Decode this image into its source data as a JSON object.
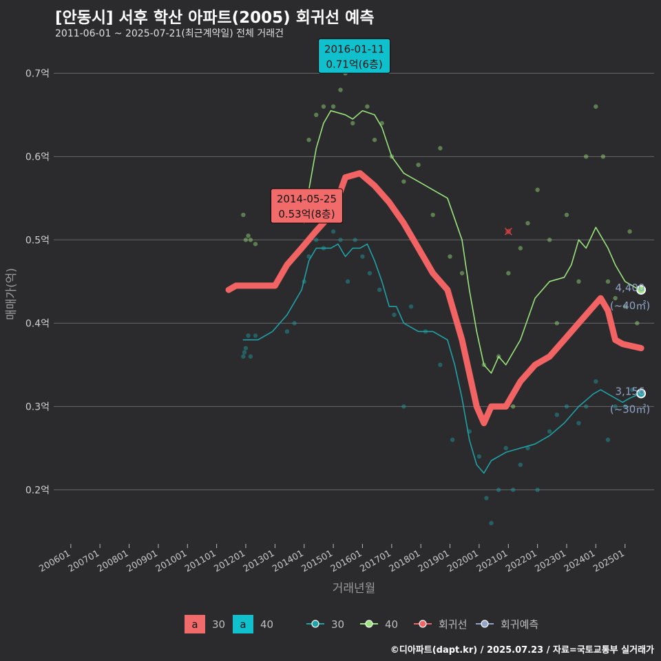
{
  "title": "[안동시] 서후 학산 아파트(2005) 회귀선 예측",
  "subtitle": "2011-06-01 ~ 2025-07-21(최근계약일) 전체 거래건",
  "caption": "©디아파트(dapt.kr) / 2025.07.23 / 자료=국토교통부 실거래가",
  "chart_data": {
    "type": "line",
    "xlabel": "거래년월",
    "ylabel": "매매가(억)",
    "x_ticks": [
      "200601",
      "200701",
      "200801",
      "200901",
      "201001",
      "201101",
      "201201",
      "201301",
      "201401",
      "201501",
      "201601",
      "201701",
      "201801",
      "201901",
      "202001",
      "202101",
      "202201",
      "202301",
      "202401",
      "202501"
    ],
    "y_ticks": [
      {
        "value": 0.2,
        "label": "0.2억"
      },
      {
        "value": 0.3,
        "label": "0.3억"
      },
      {
        "value": 0.4,
        "label": "0.4억"
      },
      {
        "value": 0.5,
        "label": "0.5억"
      },
      {
        "value": 0.6,
        "label": "0.6억"
      },
      {
        "value": 0.7,
        "label": "0.7억"
      }
    ],
    "xlim": [
      "2005-06-01",
      "2025-12-31"
    ],
    "ylim": [
      0.135,
      0.735
    ],
    "colors": {
      "s30": "#1fa3a8",
      "s40": "#9be57d",
      "regression": "#f26464",
      "forecast": "#8fa4c8",
      "callout30": "#f26b6b",
      "callout40": "#10c0cc"
    },
    "series": [
      {
        "name": "30",
        "values": [
          [
            "2011-12-01",
            0.38
          ],
          [
            "2012-06-01",
            0.38
          ],
          [
            "2012-12-01",
            0.39
          ],
          [
            "2013-06-01",
            0.41
          ],
          [
            "2013-12-01",
            0.44
          ],
          [
            "2014-03-01",
            0.475
          ],
          [
            "2014-06-01",
            0.49
          ],
          [
            "2014-12-01",
            0.49
          ],
          [
            "2015-03-01",
            0.495
          ],
          [
            "2015-06-01",
            0.48
          ],
          [
            "2015-09-01",
            0.49
          ],
          [
            "2015-12-01",
            0.49
          ],
          [
            "2016-03-01",
            0.495
          ],
          [
            "2016-06-01",
            0.475
          ],
          [
            "2016-09-01",
            0.45
          ],
          [
            "2016-12-01",
            0.42
          ],
          [
            "2017-03-01",
            0.42
          ],
          [
            "2017-06-01",
            0.4
          ],
          [
            "2017-12-01",
            0.39
          ],
          [
            "2018-06-01",
            0.39
          ],
          [
            "2018-12-01",
            0.38
          ],
          [
            "2019-03-01",
            0.35
          ],
          [
            "2019-06-01",
            0.31
          ],
          [
            "2019-09-01",
            0.26
          ],
          [
            "2019-12-01",
            0.23
          ],
          [
            "2020-03-01",
            0.22
          ],
          [
            "2020-06-01",
            0.235
          ],
          [
            "2020-12-01",
            0.245
          ],
          [
            "2021-06-01",
            0.25
          ],
          [
            "2021-12-01",
            0.255
          ],
          [
            "2022-06-01",
            0.265
          ],
          [
            "2022-12-01",
            0.28
          ],
          [
            "2023-06-01",
            0.3
          ],
          [
            "2023-12-01",
            0.315
          ],
          [
            "2024-03-01",
            0.32
          ],
          [
            "2024-06-01",
            0.315
          ],
          [
            "2024-12-01",
            0.305
          ],
          [
            "2025-03-01",
            0.31
          ],
          [
            "2025-07-01",
            0.315
          ]
        ]
      },
      {
        "name": "40",
        "values": [
          [
            "2014-01-01",
            0.52
          ],
          [
            "2014-03-01",
            0.56
          ],
          [
            "2014-06-01",
            0.61
          ],
          [
            "2014-09-01",
            0.64
          ],
          [
            "2014-12-01",
            0.655
          ],
          [
            "2015-06-01",
            0.65
          ],
          [
            "2015-09-01",
            0.645
          ],
          [
            "2016-01-01",
            0.655
          ],
          [
            "2016-06-01",
            0.65
          ],
          [
            "2016-09-01",
            0.635
          ],
          [
            "2017-01-01",
            0.6
          ],
          [
            "2017-06-01",
            0.58
          ],
          [
            "2017-12-01",
            0.57
          ],
          [
            "2018-06-01",
            0.56
          ],
          [
            "2018-12-01",
            0.55
          ],
          [
            "2019-06-01",
            0.5
          ],
          [
            "2019-09-01",
            0.44
          ],
          [
            "2019-12-01",
            0.39
          ],
          [
            "2020-03-01",
            0.35
          ],
          [
            "2020-06-01",
            0.34
          ],
          [
            "2020-09-01",
            0.36
          ],
          [
            "2020-12-01",
            0.35
          ],
          [
            "2021-06-01",
            0.38
          ],
          [
            "2021-12-01",
            0.43
          ],
          [
            "2022-06-01",
            0.45
          ],
          [
            "2022-12-01",
            0.455
          ],
          [
            "2023-03-01",
            0.47
          ],
          [
            "2023-06-01",
            0.5
          ],
          [
            "2023-09-01",
            0.49
          ],
          [
            "2024-01-01",
            0.515
          ],
          [
            "2024-06-01",
            0.49
          ],
          [
            "2024-09-01",
            0.47
          ],
          [
            "2025-01-01",
            0.45
          ],
          [
            "2025-07-01",
            0.44
          ]
        ]
      },
      {
        "name": "회귀선",
        "values": [
          [
            "2011-06-01",
            0.44
          ],
          [
            "2011-09-01",
            0.445
          ],
          [
            "2012-06-01",
            0.445
          ],
          [
            "2013-01-01",
            0.445
          ],
          [
            "2013-06-01",
            0.47
          ],
          [
            "2013-12-01",
            0.49
          ],
          [
            "2014-05-25",
            0.51
          ],
          [
            "2014-12-01",
            0.53
          ],
          [
            "2015-03-01",
            0.55
          ],
          [
            "2015-06-01",
            0.575
          ],
          [
            "2015-12-01",
            0.58
          ],
          [
            "2016-06-01",
            0.565
          ],
          [
            "2016-12-01",
            0.545
          ],
          [
            "2017-06-01",
            0.52
          ],
          [
            "2017-12-01",
            0.49
          ],
          [
            "2018-06-01",
            0.46
          ],
          [
            "2018-12-01",
            0.44
          ],
          [
            "2019-06-01",
            0.38
          ],
          [
            "2019-12-01",
            0.3
          ],
          [
            "2020-03-01",
            0.28
          ],
          [
            "2020-06-01",
            0.3
          ],
          [
            "2020-12-01",
            0.3
          ],
          [
            "2021-06-01",
            0.33
          ],
          [
            "2021-12-01",
            0.35
          ],
          [
            "2022-06-01",
            0.36
          ],
          [
            "2022-12-01",
            0.38
          ],
          [
            "2023-06-01",
            0.4
          ],
          [
            "2023-12-01",
            0.42
          ],
          [
            "2024-03-01",
            0.43
          ],
          [
            "2024-06-01",
            0.415
          ],
          [
            "2024-09-01",
            0.38
          ],
          [
            "2024-12-01",
            0.375
          ],
          [
            "2025-07-21",
            0.37
          ]
        ]
      }
    ],
    "scatter30": [
      [
        "2011-12-01",
        0.36
      ],
      [
        "2011-12-15",
        0.365
      ],
      [
        "2012-01-01",
        0.37
      ],
      [
        "2012-02-01",
        0.385
      ],
      [
        "2012-03-01",
        0.36
      ],
      [
        "2012-05-01",
        0.385
      ],
      [
        "2013-06-01",
        0.39
      ],
      [
        "2013-09-01",
        0.4
      ],
      [
        "2014-01-01",
        0.45
      ],
      [
        "2014-03-01",
        0.48
      ],
      [
        "2014-06-01",
        0.5
      ],
      [
        "2014-09-01",
        0.49
      ],
      [
        "2015-01-01",
        0.51
      ],
      [
        "2015-04-01",
        0.5
      ],
      [
        "2015-07-01",
        0.45
      ],
      [
        "2015-10-01",
        0.5
      ],
      [
        "2016-01-01",
        0.48
      ],
      [
        "2016-04-01",
        0.46
      ],
      [
        "2016-08-01",
        0.44
      ],
      [
        "2017-02-01",
        0.41
      ],
      [
        "2017-06-01",
        0.3
      ],
      [
        "2017-09-01",
        0.42
      ],
      [
        "2018-03-01",
        0.39
      ],
      [
        "2018-09-01",
        0.35
      ],
      [
        "2019-02-01",
        0.26
      ],
      [
        "2019-09-01",
        0.27
      ],
      [
        "2020-01-01",
        0.24
      ],
      [
        "2020-04-01",
        0.19
      ],
      [
        "2020-06-01",
        0.16
      ],
      [
        "2020-09-01",
        0.2
      ],
      [
        "2020-12-01",
        0.25
      ],
      [
        "2021-03-01",
        0.2
      ],
      [
        "2021-06-01",
        0.23
      ],
      [
        "2021-09-01",
        0.25
      ],
      [
        "2022-01-01",
        0.2
      ],
      [
        "2022-06-01",
        0.27
      ],
      [
        "2022-09-01",
        0.29
      ],
      [
        "2023-01-01",
        0.3
      ],
      [
        "2023-06-01",
        0.28
      ],
      [
        "2023-09-01",
        0.3
      ],
      [
        "2024-01-01",
        0.33
      ],
      [
        "2024-06-01",
        0.26
      ],
      [
        "2024-09-01",
        0.3
      ],
      [
        "2025-01-01",
        0.3
      ],
      [
        "2025-04-01",
        0.32
      ]
    ],
    "scatter40": [
      [
        "2011-12-01",
        0.53
      ],
      [
        "2012-01-01",
        0.5
      ],
      [
        "2012-02-01",
        0.505
      ],
      [
        "2012-03-01",
        0.5
      ],
      [
        "2012-05-01",
        0.495
      ],
      [
        "2013-09-01",
        0.55
      ],
      [
        "2014-03-01",
        0.62
      ],
      [
        "2014-06-01",
        0.65
      ],
      [
        "2014-09-01",
        0.66
      ],
      [
        "2015-01-01",
        0.66
      ],
      [
        "2015-04-01",
        0.68
      ],
      [
        "2015-06-01",
        0.7
      ],
      [
        "2015-09-01",
        0.64
      ],
      [
        "2016-01-01",
        0.71
      ],
      [
        "2016-03-01",
        0.66
      ],
      [
        "2016-06-01",
        0.62
      ],
      [
        "2016-09-01",
        0.64
      ],
      [
        "2017-01-01",
        0.6
      ],
      [
        "2017-06-01",
        0.57
      ],
      [
        "2017-12-01",
        0.59
      ],
      [
        "2018-06-01",
        0.53
      ],
      [
        "2018-09-01",
        0.61
      ],
      [
        "2019-01-01",
        0.48
      ],
      [
        "2019-06-01",
        0.46
      ],
      [
        "2020-03-01",
        0.35
      ],
      [
        "2020-09-01",
        0.36
      ],
      [
        "2021-01-01",
        0.46
      ],
      [
        "2021-03-01",
        0.3
      ],
      [
        "2021-06-01",
        0.49
      ],
      [
        "2021-09-01",
        0.52
      ],
      [
        "2022-01-01",
        0.56
      ],
      [
        "2022-06-01",
        0.5
      ],
      [
        "2022-09-01",
        0.4
      ],
      [
        "2023-01-01",
        0.53
      ],
      [
        "2023-06-01",
        0.45
      ],
      [
        "2023-09-01",
        0.6
      ],
      [
        "2024-01-01",
        0.66
      ],
      [
        "2024-04-01",
        0.6
      ],
      [
        "2024-06-01",
        0.45
      ],
      [
        "2024-09-01",
        0.43
      ],
      [
        "2025-01-01",
        0.42
      ],
      [
        "2025-03-01",
        0.51
      ],
      [
        "2025-06-01",
        0.4
      ]
    ],
    "outlier": [
      "2021-01-01",
      0.51
    ],
    "callouts": [
      {
        "date_line": "2016-01-11",
        "value_line": "0.71억(6층)",
        "x": "2016-01-11",
        "y": 0.71,
        "color": "callout40"
      },
      {
        "date_line": "2014-05-25",
        "value_line": "0.53억(8층)",
        "x": "2014-05-25",
        "y": 0.53,
        "color": "callout30"
      }
    ],
    "end_points": [
      {
        "series": "40",
        "x": "2025-07-21",
        "y": 0.44,
        "count": "4,400",
        "area": "(~40㎡)"
      },
      {
        "series": "30",
        "x": "2025-07-21",
        "y": 0.3156,
        "count": "3,156",
        "area": "(~30㎡)"
      }
    ],
    "legend": {
      "fill_items": [
        {
          "key": "a",
          "label": "30"
        },
        {
          "key": "a",
          "label": "40"
        }
      ],
      "line_items": [
        {
          "label": "30"
        },
        {
          "label": "40"
        },
        {
          "label": "회귀선"
        },
        {
          "label": "회귀예측"
        }
      ]
    }
  }
}
